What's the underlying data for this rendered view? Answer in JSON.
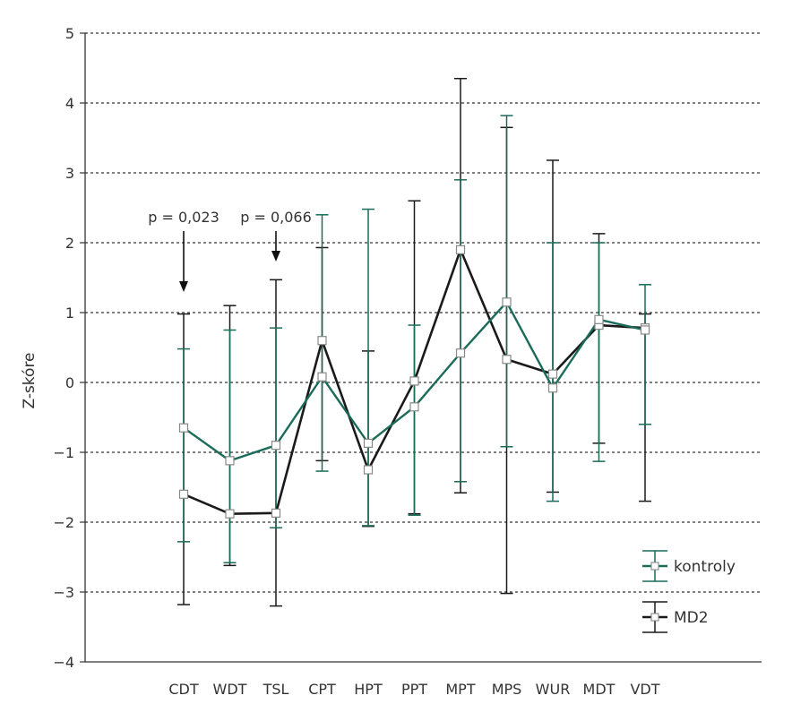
{
  "chart_data": {
    "type": "line",
    "ylabel": "Z-skóre",
    "xlabel": "",
    "ylim": [
      -4,
      5
    ],
    "yticks": [
      "5",
      "4",
      "3",
      "2",
      "1",
      "0",
      "−1",
      "−2",
      "−3",
      "−4"
    ],
    "yticks_values": [
      5,
      4,
      3,
      2,
      1,
      0,
      -1,
      -2,
      -3,
      -4
    ],
    "grid": "horizontal dotted",
    "legend": "bottom-right",
    "categories": [
      "CDT",
      "WDT",
      "TSL",
      "CPT",
      "HPT",
      "PPT",
      "MPT",
      "MPS",
      "WUR",
      "MDT",
      "VDT"
    ],
    "series": [
      {
        "name": "kontroly",
        "color": "#1a6b5a",
        "values": [
          -0.65,
          -1.12,
          -0.9,
          0.08,
          -0.87,
          -0.35,
          0.42,
          1.15,
          -0.08,
          0.9,
          0.75
        ],
        "err_low": [
          -2.28,
          -2.58,
          -2.08,
          -1.27,
          -2.05,
          -1.9,
          -1.42,
          -0.92,
          -1.7,
          -1.13,
          -0.6
        ],
        "err_high": [
          0.48,
          0.75,
          0.78,
          2.4,
          2.48,
          0.82,
          2.9,
          3.82,
          2.0,
          2.0,
          1.4
        ]
      },
      {
        "name": "MD2",
        "color": "#1a1a1a",
        "values": [
          -1.6,
          -1.88,
          -1.87,
          0.6,
          -1.25,
          0.02,
          1.9,
          0.33,
          0.12,
          0.82,
          0.78
        ],
        "err_low": [
          -3.18,
          -2.62,
          -3.2,
          -1.12,
          -2.06,
          -1.88,
          -1.58,
          -3.02,
          -1.57,
          -0.87,
          -1.7
        ],
        "err_high": [
          0.98,
          1.1,
          1.47,
          1.93,
          0.45,
          2.6,
          4.35,
          3.65,
          3.18,
          2.13,
          0.98
        ]
      }
    ],
    "annotations": [
      {
        "category": "CDT",
        "text": "p = 0,023"
      },
      {
        "category": "TSL",
        "text": "p = 0,066"
      }
    ]
  }
}
